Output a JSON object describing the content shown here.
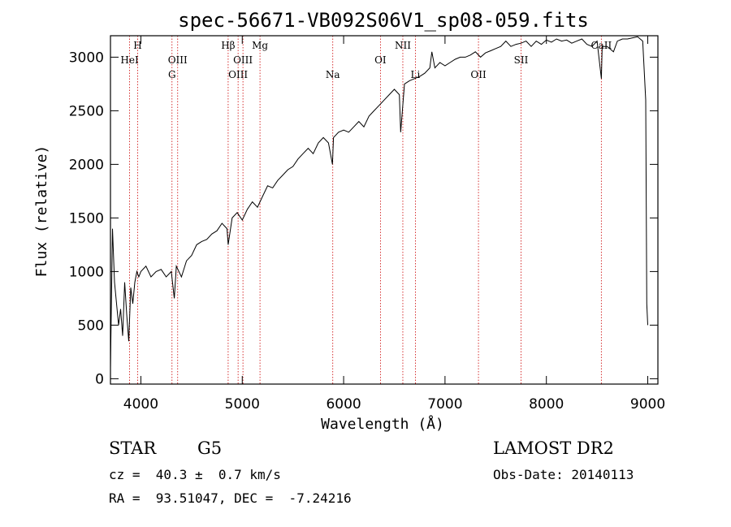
{
  "chart_data": {
    "type": "line",
    "title": "spec-56671-VB092S06V1_sp08-059.fits",
    "xlabel": "Wavelength (Å)",
    "ylabel": "Flux (relative)",
    "xlim": [
      3700,
      9100
    ],
    "ylim": [
      -50,
      3200
    ],
    "xticks": [
      4000,
      5000,
      6000,
      7000,
      8000,
      9000
    ],
    "yticks": [
      0,
      500,
      1000,
      1500,
      2000,
      2500,
      3000
    ],
    "grid": false,
    "series": [
      {
        "x": [
          3700,
          3720,
          3740,
          3760,
          3780,
          3800,
          3820,
          3840,
          3860,
          3880,
          3900,
          3920,
          3940,
          3960,
          3980,
          4000,
          4050,
          4100,
          4150,
          4200,
          4250,
          4300,
          4330,
          4350,
          4400,
          4450,
          4500,
          4550,
          4600,
          4650,
          4700,
          4750,
          4800,
          4850,
          4861,
          4900,
          4950,
          5000,
          5050,
          5100,
          5150,
          5200,
          5250,
          5300,
          5350,
          5400,
          5450,
          5500,
          5550,
          5600,
          5650,
          5700,
          5750,
          5800,
          5850,
          5890,
          5900,
          5950,
          6000,
          6050,
          6100,
          6150,
          6200,
          6250,
          6300,
          6350,
          6400,
          6450,
          6500,
          6550,
          6563,
          6600,
          6650,
          6700,
          6750,
          6800,
          6850,
          6870,
          6900,
          6950,
          7000,
          7050,
          7100,
          7150,
          7200,
          7250,
          7300,
          7350,
          7400,
          7450,
          7500,
          7550,
          7600,
          7650,
          7700,
          7750,
          7800,
          7850,
          7900,
          7950,
          8000,
          8050,
          8100,
          8150,
          8200,
          8250,
          8300,
          8350,
          8400,
          8450,
          8500,
          8542,
          8550,
          8600,
          8662,
          8700,
          8750,
          8800,
          8850,
          8900,
          8950,
          8980,
          8990,
          9000
        ],
        "y": [
          100,
          1400,
          900,
          700,
          500,
          650,
          400,
          900,
          600,
          350,
          850,
          700,
          900,
          1000,
          950,
          1000,
          1050,
          950,
          1000,
          1020,
          950,
          1000,
          750,
          1050,
          950,
          1100,
          1150,
          1250,
          1280,
          1300,
          1350,
          1380,
          1450,
          1400,
          1250,
          1500,
          1550,
          1480,
          1580,
          1650,
          1600,
          1700,
          1800,
          1780,
          1850,
          1900,
          1950,
          1980,
          2050,
          2100,
          2150,
          2100,
          2200,
          2250,
          2200,
          2000,
          2250,
          2300,
          2320,
          2300,
          2350,
          2400,
          2350,
          2450,
          2500,
          2550,
          2600,
          2650,
          2700,
          2650,
          2300,
          2750,
          2780,
          2800,
          2820,
          2850,
          2900,
          3050,
          2900,
          2950,
          2920,
          2950,
          2980,
          3000,
          3000,
          3020,
          3050,
          3000,
          3040,
          3060,
          3080,
          3100,
          3150,
          3100,
          3120,
          3130,
          3150,
          3100,
          3150,
          3120,
          3160,
          3140,
          3170,
          3150,
          3160,
          3130,
          3150,
          3170,
          3120,
          3100,
          3150,
          2800,
          3100,
          3100,
          3050,
          3150,
          3170,
          3170,
          3180,
          3190,
          3150,
          2600,
          700,
          500
        ]
      }
    ],
    "line_markers": [
      {
        "name": "HeI",
        "wavelength": 3889,
        "label_row": 2
      },
      {
        "name": "H",
        "wavelength": 3968,
        "label_row": 1
      },
      {
        "name": "OIII",
        "wavelength": 4363,
        "label_row": 2
      },
      {
        "name": "G",
        "wavelength": 4307,
        "label_row": 3
      },
      {
        "name": "Hβ",
        "wavelength": 4861,
        "label_row": 1
      },
      {
        "name": "OIII",
        "wavelength": 4959,
        "label_row": 3
      },
      {
        "name": "OIII",
        "wavelength": 5007,
        "label_row": 2
      },
      {
        "name": "Mg",
        "wavelength": 5175,
        "label_row": 1
      },
      {
        "name": "Na",
        "wavelength": 5893,
        "label_row": 3
      },
      {
        "name": "OI",
        "wavelength": 6363,
        "label_row": 2
      },
      {
        "name": "NII",
        "wavelength": 6584,
        "label_row": 1
      },
      {
        "name": "Li",
        "wavelength": 6708,
        "label_row": 3
      },
      {
        "name": "OII",
        "wavelength": 7330,
        "label_row": 3
      },
      {
        "name": "SII",
        "wavelength": 7750,
        "label_row": 2
      },
      {
        "name": "CaII",
        "wavelength": 8542,
        "label_row": 1
      }
    ],
    "colors": {
      "spectrum": "#000000",
      "line_marker": "#cc0000",
      "axes": "#000000"
    }
  },
  "info": {
    "class_label": "STAR",
    "subclass": "G5",
    "redshift": "cz =  40.3 ±  0.7 km/s",
    "coordinates": "RA =  93.51047, DEC =  -7.24216",
    "survey": "LAMOST DR2",
    "obs_date": "Obs-Date: 20140113"
  }
}
